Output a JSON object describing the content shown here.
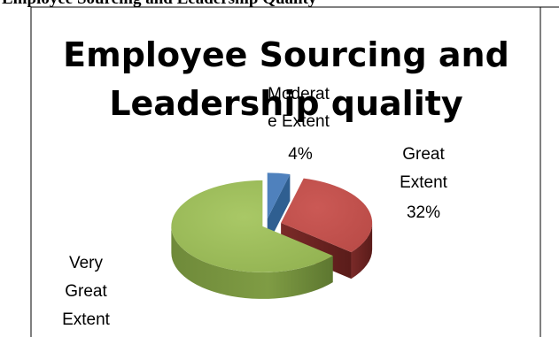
{
  "caption": "Employee Sourcing and Leadership Quality",
  "chart_data": {
    "type": "pie",
    "title": [
      "Employee Sourcing and",
      "Leadership quality"
    ],
    "three_d": true,
    "exploded": true,
    "slices": [
      {
        "label": [
          "Moderat",
          "e Extent"
        ],
        "pct_text": "4%",
        "value": 4,
        "color": "#4f81bd"
      },
      {
        "label": [
          "Great",
          "Extent"
        ],
        "pct_text": "32%",
        "value": 32,
        "color": "#c0504d"
      },
      {
        "label": [
          "Very",
          "Great",
          "Extent"
        ],
        "pct_text": "",
        "value": 64,
        "color": "#9bbb59"
      }
    ]
  }
}
